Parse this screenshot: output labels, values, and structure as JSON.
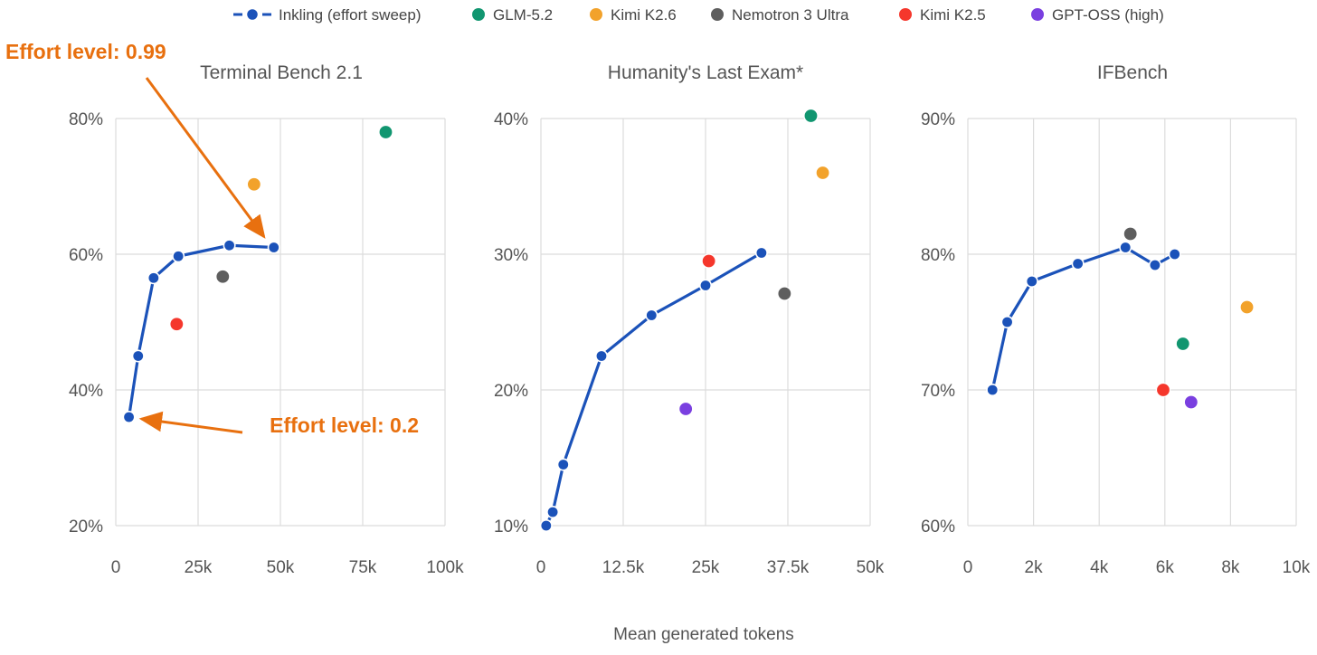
{
  "colors": {
    "inkling": "#1b52b9",
    "glm": "#119670",
    "kimi26": "#f2a22b",
    "nemotron": "#5e5e5e",
    "kimi25": "#f5372c",
    "gptoss": "#7a3fe0",
    "annotation": "#e8700f"
  },
  "legend": [
    {
      "label": "Inkling (effort sweep)",
      "color_key": "inkling",
      "kind": "line"
    },
    {
      "label": "GLM-5.2",
      "color_key": "glm",
      "kind": "dot"
    },
    {
      "label": "Kimi K2.6",
      "color_key": "kimi26",
      "kind": "dot"
    },
    {
      "label": "Nemotron 3 Ultra",
      "color_key": "nemotron",
      "kind": "dot"
    },
    {
      "label": "Kimi K2.5",
      "color_key": "kimi25",
      "kind": "dot"
    },
    {
      "label": "GPT-OSS (high)",
      "color_key": "gptoss",
      "kind": "dot"
    }
  ],
  "xlabel": "Mean generated tokens",
  "chart_data": [
    {
      "type": "scatter",
      "title": "Terminal Bench 2.1",
      "xlim": [
        0,
        100000
      ],
      "ylim": [
        20,
        80
      ],
      "x_ticks": [
        0,
        25000,
        50000,
        75000,
        100000
      ],
      "x_tick_labels": [
        "0",
        "25k",
        "50k",
        "75k",
        "100k"
      ],
      "y_ticks": [
        20,
        40,
        60,
        80
      ],
      "y_tick_labels": [
        "20%",
        "40%",
        "60%",
        "80%"
      ],
      "grid": true,
      "series": [
        {
          "name": "Inkling (effort sweep)",
          "color_key": "inkling",
          "line": true,
          "points": [
            [
              4000,
              36
            ],
            [
              6800,
              45
            ],
            [
              11500,
              56.5
            ],
            [
              19000,
              59.7
            ],
            [
              34500,
              61.3
            ],
            [
              48000,
              61
            ]
          ]
        },
        {
          "name": "GLM-5.2",
          "color_key": "glm",
          "points": [
            [
              82000,
              78
            ]
          ]
        },
        {
          "name": "Kimi K2.6",
          "color_key": "kimi26",
          "points": [
            [
              42000,
              70.3
            ]
          ]
        },
        {
          "name": "Nemotron 3 Ultra",
          "color_key": "nemotron",
          "points": [
            [
              32500,
              56.7
            ]
          ]
        },
        {
          "name": "Kimi K2.5",
          "color_key": "kimi25",
          "points": [
            [
              18500,
              49.7
            ]
          ]
        }
      ],
      "annotations": [
        {
          "text": "Effort level: 0.99",
          "target": [
            48000,
            61
          ]
        },
        {
          "text": "Effort level: 0.2",
          "target": [
            4000,
            36
          ]
        }
      ]
    },
    {
      "type": "scatter",
      "title": "Humanity's Last Exam*",
      "xlim": [
        0,
        50000
      ],
      "ylim": [
        10,
        40
      ],
      "x_ticks": [
        0,
        12500,
        25000,
        37500,
        50000
      ],
      "x_tick_labels": [
        "0",
        "12.5k",
        "25k",
        "37.5k",
        "50k"
      ],
      "y_ticks": [
        10,
        20,
        30,
        40
      ],
      "y_tick_labels": [
        "10%",
        "20%",
        "30%",
        "40%"
      ],
      "grid": true,
      "series": [
        {
          "name": "Inkling (effort sweep)",
          "color_key": "inkling",
          "line": true,
          "points": [
            [
              800,
              10
            ],
            [
              1800,
              11
            ],
            [
              3400,
              14.5
            ],
            [
              9200,
              22.5
            ],
            [
              16800,
              25.5
            ],
            [
              25000,
              27.7
            ],
            [
              33500,
              30.1
            ]
          ]
        },
        {
          "name": "GLM-5.2",
          "color_key": "glm",
          "points": [
            [
              41000,
              40.2
            ]
          ]
        },
        {
          "name": "Kimi K2.6",
          "color_key": "kimi26",
          "points": [
            [
              42800,
              36
            ]
          ]
        },
        {
          "name": "Nemotron 3 Ultra",
          "color_key": "nemotron",
          "points": [
            [
              37000,
              27.1
            ]
          ]
        },
        {
          "name": "Kimi K2.5",
          "color_key": "kimi25",
          "points": [
            [
              25500,
              29.5
            ]
          ]
        },
        {
          "name": "GPT-OSS (high)",
          "color_key": "gptoss",
          "points": [
            [
              22000,
              18.6
            ]
          ]
        }
      ]
    },
    {
      "type": "scatter",
      "title": "IFBench",
      "xlim": [
        0,
        10000
      ],
      "ylim": [
        60,
        90
      ],
      "x_ticks": [
        0,
        2000,
        4000,
        6000,
        8000,
        10000
      ],
      "x_tick_labels": [
        "0",
        "2k",
        "4k",
        "6k",
        "8k",
        "10k"
      ],
      "y_ticks": [
        60,
        70,
        80,
        90
      ],
      "y_tick_labels": [
        "60%",
        "70%",
        "80%",
        "90%"
      ],
      "grid": true,
      "series": [
        {
          "name": "Inkling (effort sweep)",
          "color_key": "inkling",
          "line": true,
          "points": [
            [
              750,
              70
            ],
            [
              1200,
              75
            ],
            [
              1950,
              78
            ],
            [
              3350,
              79.3
            ],
            [
              4800,
              80.5
            ],
            [
              5700,
              79.2
            ],
            [
              6300,
              80
            ]
          ]
        },
        {
          "name": "GLM-5.2",
          "color_key": "glm",
          "points": [
            [
              6550,
              73.4
            ]
          ]
        },
        {
          "name": "Kimi K2.6",
          "color_key": "kimi26",
          "points": [
            [
              8500,
              76.1
            ]
          ]
        },
        {
          "name": "Nemotron 3 Ultra",
          "color_key": "nemotron",
          "points": [
            [
              4950,
              81.5
            ]
          ]
        },
        {
          "name": "Kimi K2.5",
          "color_key": "kimi25",
          "points": [
            [
              5950,
              70
            ]
          ]
        },
        {
          "name": "GPT-OSS (high)",
          "color_key": "gptoss",
          "points": [
            [
              6800,
              69.1
            ]
          ]
        }
      ]
    }
  ]
}
